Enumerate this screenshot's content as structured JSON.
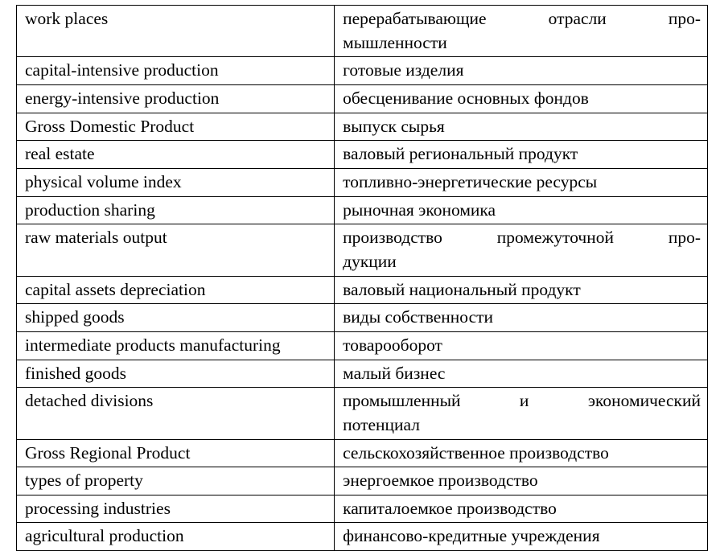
{
  "table": {
    "type": "table",
    "background_color": "#ffffff",
    "border_color": "#000000",
    "text_color": "#000000",
    "font_family": "Times New Roman",
    "font_size_pt": 16,
    "column_widths_pct": [
      46,
      54
    ],
    "rows": [
      {
        "left": "work places",
        "right_line1": "перерабатывающие отрасли про-",
        "right_line2": "мышленности",
        "right_justify": true
      },
      {
        "left": "capital-intensive production",
        "right": "готовые изделия"
      },
      {
        "left": "energy-intensive production",
        "right": "обесценивание основных фондов"
      },
      {
        "left": "Gross Domestic Product",
        "right": "выпуск сырья"
      },
      {
        "left": "real estate",
        "right": "валовый региональный продукт"
      },
      {
        "left": "physical volume index",
        "right": "топливно-энергетические ресурсы"
      },
      {
        "left": "production sharing",
        "right": "рыночная экономика"
      },
      {
        "left": "raw materials output",
        "right_line1": "производство промежуточной про-",
        "right_line2": "дукции",
        "right_justify": true
      },
      {
        "left": "capital assets depreciation",
        "right": "валовый национальный продукт"
      },
      {
        "left": "shipped goods",
        "right": "виды собственности"
      },
      {
        "left": "intermediate products manufacturing",
        "right": "товарооборот"
      },
      {
        "left": "finished goods",
        "right": "малый бизнес"
      },
      {
        "left": "detached divisions",
        "right_line1": "промышленный и экономический",
        "right_line2": "потенциал",
        "right_justify": true
      },
      {
        "left": "Gross Regional Product",
        "right": "сельскохозяйственное производство"
      },
      {
        "left": "types of property",
        "right": "энергоемкое производство"
      },
      {
        "left": "processing industries",
        "right": "капиталоемкое производство"
      },
      {
        "left": "agricultural production",
        "right": "финансово-кредитные учреждения"
      }
    ]
  }
}
